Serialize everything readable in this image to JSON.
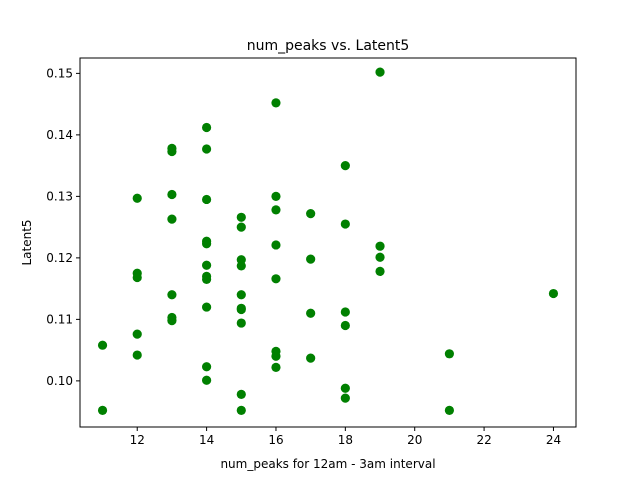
{
  "chart_data": {
    "type": "scatter",
    "title": "num_peaks vs. Latent5",
    "xlabel": "num_peaks for 12am - 3am interval",
    "ylabel": "Latent5",
    "xlim": [
      10.35,
      24.65
    ],
    "ylim": [
      0.0925,
      0.1525
    ],
    "xticks": [
      12,
      14,
      16,
      18,
      20,
      22,
      24
    ],
    "xtick_labels": [
      "12",
      "14",
      "16",
      "18",
      "20",
      "22",
      "24"
    ],
    "yticks": [
      0.1,
      0.11,
      0.12,
      0.13,
      0.14,
      0.15
    ],
    "ytick_labels": [
      "0.10",
      "0.11",
      "0.12",
      "0.13",
      "0.14",
      "0.15"
    ],
    "grid": false,
    "marker_color": "#008000",
    "points": [
      [
        11,
        0.1058
      ],
      [
        11,
        0.0952
      ],
      [
        12,
        0.1297
      ],
      [
        12,
        0.1175
      ],
      [
        12,
        0.1168
      ],
      [
        12,
        0.1076
      ],
      [
        12,
        0.1042
      ],
      [
        13,
        0.1378
      ],
      [
        13,
        0.1373
      ],
      [
        13,
        0.1303
      ],
      [
        13,
        0.1263
      ],
      [
        13,
        0.114
      ],
      [
        13,
        0.1103
      ],
      [
        13,
        0.1098
      ],
      [
        14,
        0.1412
      ],
      [
        14,
        0.1377
      ],
      [
        14,
        0.1295
      ],
      [
        14,
        0.1227
      ],
      [
        14,
        0.1223
      ],
      [
        14,
        0.1188
      ],
      [
        14,
        0.117
      ],
      [
        14,
        0.1165
      ],
      [
        14,
        0.112
      ],
      [
        14,
        0.1023
      ],
      [
        14,
        0.1001
      ],
      [
        15,
        0.1266
      ],
      [
        15,
        0.125
      ],
      [
        15,
        0.1197
      ],
      [
        15,
        0.1187
      ],
      [
        15,
        0.114
      ],
      [
        15,
        0.1118
      ],
      [
        15,
        0.1116
      ],
      [
        15,
        0.1094
      ],
      [
        15,
        0.0978
      ],
      [
        15,
        0.0952
      ],
      [
        16,
        0.1452
      ],
      [
        16,
        0.13
      ],
      [
        16,
        0.1278
      ],
      [
        16,
        0.1221
      ],
      [
        16,
        0.1166
      ],
      [
        16,
        0.1048
      ],
      [
        16,
        0.104
      ],
      [
        16,
        0.1022
      ],
      [
        17,
        0.1272
      ],
      [
        17,
        0.1198
      ],
      [
        17,
        0.111
      ],
      [
        17,
        0.1037
      ],
      [
        18,
        0.135
      ],
      [
        18,
        0.1255
      ],
      [
        18,
        0.1112
      ],
      [
        18,
        0.109
      ],
      [
        18,
        0.0988
      ],
      [
        18,
        0.0972
      ],
      [
        19,
        0.1502
      ],
      [
        19,
        0.1219
      ],
      [
        19,
        0.1201
      ],
      [
        19,
        0.1178
      ],
      [
        21,
        0.1044
      ],
      [
        21,
        0.0952
      ],
      [
        24,
        0.1142
      ]
    ]
  }
}
